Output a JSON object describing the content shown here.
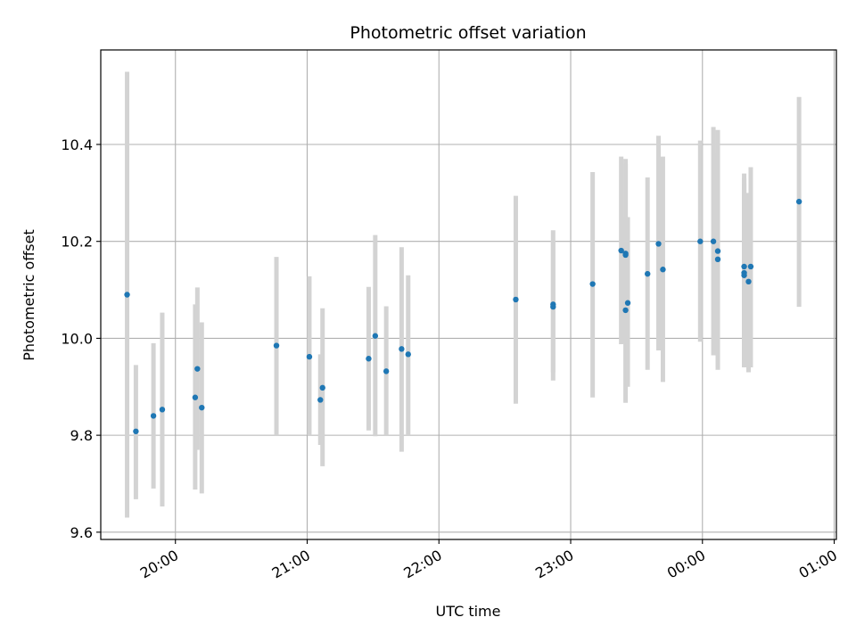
{
  "chart_data": {
    "type": "scatter",
    "title": "Photometric offset variation",
    "xlabel": "UTC time",
    "ylabel": "Photometric offset",
    "x_axis": "time",
    "xlim": [
      "19:26",
      "01:01"
    ],
    "ylim": [
      9.585,
      10.595
    ],
    "xticks": [
      "20:00",
      "21:00",
      "22:00",
      "23:00",
      "00:00",
      "01:00"
    ],
    "xtick_times": [
      "20:00",
      "21:00",
      "22:00",
      "23:00",
      "00:00",
      "01:00"
    ],
    "yticks": [
      "9.6",
      "9.8",
      "10.0",
      "10.2",
      "10.4"
    ],
    "ytick_values": [
      9.6,
      9.8,
      10.0,
      10.2,
      10.4
    ],
    "grid": true,
    "colors": {
      "point": "#1f77b4",
      "errorbar": "#d3d3d3",
      "grid": "#b0b0b0"
    },
    "points": [
      {
        "t": "19:38",
        "y": 10.09,
        "lo": 9.63,
        "hi": 10.55
      },
      {
        "t": "19:42",
        "y": 9.808,
        "lo": 9.668,
        "hi": 9.945
      },
      {
        "t": "19:50",
        "y": 9.84,
        "lo": 9.69,
        "hi": 9.99
      },
      {
        "t": "19:54",
        "y": 9.853,
        "lo": 9.653,
        "hi": 10.053
      },
      {
        "t": "20:09",
        "y": 9.878,
        "lo": 9.688,
        "hi": 10.07
      },
      {
        "t": "20:10",
        "y": 9.937,
        "lo": 9.77,
        "hi": 10.105
      },
      {
        "t": "20:12",
        "y": 9.857,
        "lo": 9.68,
        "hi": 10.033
      },
      {
        "t": "20:46",
        "y": 9.985,
        "lo": 9.8,
        "hi": 10.168
      },
      {
        "t": "21:01",
        "y": 9.962,
        "lo": 9.8,
        "hi": 10.128
      },
      {
        "t": "21:06",
        "y": 9.873,
        "lo": 9.78,
        "hi": 9.967
      },
      {
        "t": "21:07",
        "y": 9.898,
        "lo": 9.736,
        "hi": 10.062
      },
      {
        "t": "21:28",
        "y": 9.958,
        "lo": 9.81,
        "hi": 10.106
      },
      {
        "t": "21:31",
        "y": 10.005,
        "lo": 9.798,
        "hi": 10.213
      },
      {
        "t": "21:36",
        "y": 9.932,
        "lo": 9.8,
        "hi": 10.066
      },
      {
        "t": "21:43",
        "y": 9.978,
        "lo": 9.766,
        "hi": 10.188
      },
      {
        "t": "21:46",
        "y": 9.967,
        "lo": 9.8,
        "hi": 10.13
      },
      {
        "t": "22:35",
        "y": 10.08,
        "lo": 9.865,
        "hi": 10.294
      },
      {
        "t": "22:52",
        "y": 10.07,
        "lo": 9.913,
        "hi": 10.223
      },
      {
        "t": "22:52",
        "y": 10.065,
        "lo": 9.93,
        "hi": 10.2
      },
      {
        "t": "23:10",
        "y": 10.112,
        "lo": 9.878,
        "hi": 10.343
      },
      {
        "t": "23:23",
        "y": 10.181,
        "lo": 9.988,
        "hi": 10.375
      },
      {
        "t": "23:25",
        "y": 10.172,
        "lo": 9.99,
        "hi": 10.37
      },
      {
        "t": "23:25",
        "y": 10.058,
        "lo": 9.867,
        "hi": 10.25
      },
      {
        "t": "23:26",
        "y": 10.073,
        "lo": 9.9,
        "hi": 10.25
      },
      {
        "t": "23:25",
        "y": 10.175,
        "lo": 9.99,
        "hi": 10.36
      },
      {
        "t": "23:35",
        "y": 10.133,
        "lo": 9.935,
        "hi": 10.332
      },
      {
        "t": "23:40",
        "y": 10.195,
        "lo": 9.975,
        "hi": 10.418
      },
      {
        "t": "23:42",
        "y": 10.142,
        "lo": 9.91,
        "hi": 10.375
      },
      {
        "t": "23:59",
        "y": 10.2,
        "lo": 9.993,
        "hi": 10.408
      },
      {
        "t": "00:05",
        "y": 10.2,
        "lo": 9.965,
        "hi": 10.436
      },
      {
        "t": "00:07",
        "y": 10.18,
        "lo": 9.935,
        "hi": 10.43
      },
      {
        "t": "00:07",
        "y": 10.163,
        "lo": 9.94,
        "hi": 10.38
      },
      {
        "t": "00:19",
        "y": 10.148,
        "lo": 9.94,
        "hi": 10.34
      },
      {
        "t": "00:19",
        "y": 10.13,
        "lo": 9.94,
        "hi": 10.33
      },
      {
        "t": "00:19",
        "y": 10.135,
        "lo": 9.94,
        "hi": 10.32
      },
      {
        "t": "00:21",
        "y": 10.117,
        "lo": 9.93,
        "hi": 10.3
      },
      {
        "t": "00:22",
        "y": 10.148,
        "lo": 9.94,
        "hi": 10.353
      },
      {
        "t": "00:44",
        "y": 10.282,
        "lo": 10.065,
        "hi": 10.498
      }
    ]
  }
}
